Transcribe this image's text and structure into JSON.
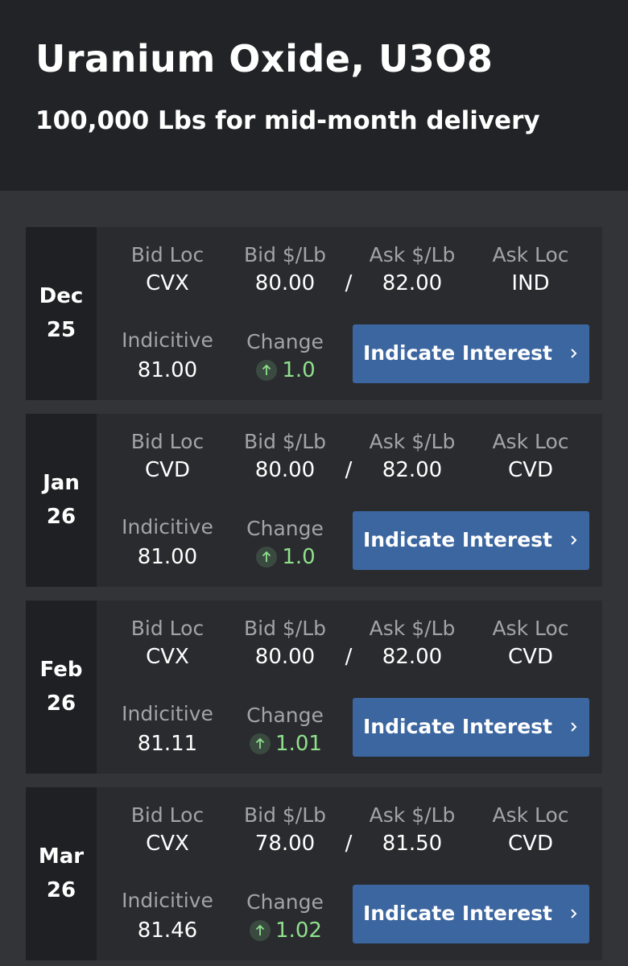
{
  "header": {
    "title": "Uranium Oxide, U3O8",
    "subtitle": "100,000 Lbs for mid-month delivery"
  },
  "labels": {
    "bid_loc": "Bid Loc",
    "bid_price": "Bid $/Lb",
    "ask_price": "Ask $/Lb",
    "ask_loc": "Ask Loc",
    "indicative": "Indicitive",
    "change": "Change",
    "separator": "/",
    "button": "Indicate Interest"
  },
  "rows": [
    {
      "month": "Dec",
      "year": "25",
      "bid_loc": "CVX",
      "bid_price": "80.00",
      "ask_price": "82.00",
      "ask_loc": "IND",
      "indicative": "81.00",
      "change": "1.0"
    },
    {
      "month": "Jan",
      "year": "26",
      "bid_loc": "CVD",
      "bid_price": "80.00",
      "ask_price": "82.00",
      "ask_loc": "CVD",
      "indicative": "81.00",
      "change": "1.0"
    },
    {
      "month": "Feb",
      "year": "26",
      "bid_loc": "CVX",
      "bid_price": "80.00",
      "ask_price": "82.00",
      "ask_loc": "CVD",
      "indicative": "81.11",
      "change": "1.01"
    },
    {
      "month": "Mar",
      "year": "26",
      "bid_loc": "CVX",
      "bid_price": "78.00",
      "ask_price": "81.50",
      "ask_loc": "CVD",
      "indicative": "81.46",
      "change": "1.02"
    }
  ]
}
